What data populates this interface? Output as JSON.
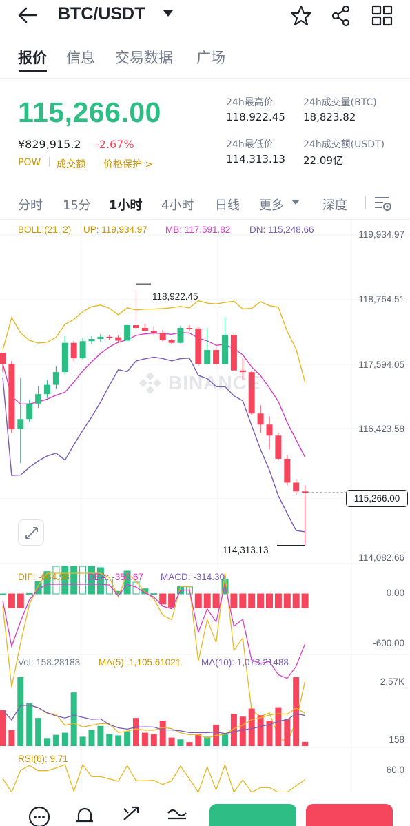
{
  "header": {
    "back_icon": "arrow-left-icon",
    "pair": "BTC/USDT",
    "icons": [
      "star-icon",
      "share-icon",
      "grid-icon"
    ]
  },
  "tabs": [
    "报价",
    "信息",
    "交易数据",
    "广场"
  ],
  "price": {
    "last": "115,266.00",
    "cny": "¥829,915.2",
    "change": "-2.67%",
    "tags": [
      "POW",
      "成交额",
      "价格保护 >"
    ],
    "high_label": "24h最高价",
    "high": "118,922.45",
    "low_label": "24h最低价",
    "low": "114,313.13",
    "vol_btc_label": "24h成交量(BTC)",
    "vol_btc": "18,823.82",
    "vol_usdt_label": "24h成交额(USDT)",
    "vol_usdt": "22.09亿"
  },
  "intervals": {
    "items": [
      "分时",
      "15分",
      "1小时",
      "4小时",
      "日线",
      "更多",
      "深度"
    ],
    "selected": "1小时"
  },
  "indicators": {
    "boll": {
      "name": "BOLL:(21, 2)",
      "up": "UP: 119,934.97",
      "mb": "MB: 117,591.82",
      "dn": "DN: 115,248.66"
    },
    "macd": {
      "dif": "DIF: -664.98",
      "dea": "DEA: -350.67",
      "macd": "MACD: -314.30"
    },
    "vol": {
      "vol": "Vol: 158.28183",
      "ma5": "MA(5): 1,105.61021",
      "ma10": "MA(10): 1,073.21488"
    },
    "rsi": {
      "rsi": "RSI(6): 9.71"
    }
  },
  "main_axis": [
    "119,934.97",
    "118,764.51",
    "117,594.05",
    "116,423.58",
    "114,082.66"
  ],
  "current_price_tag": "115,266.00",
  "max_label": "118,922.45",
  "min_label": "114,313.13",
  "watermark": "BINANCE",
  "macd_axis": [
    "0.00",
    "-600.00"
  ],
  "vol_axis": [
    "2.57K",
    "158"
  ],
  "rsi_axis": [
    "60.0"
  ],
  "colors": {
    "up": "#2ebd85",
    "down": "#f6465d",
    "boll_up": "#e8b923",
    "boll_mb": "#d63ec4",
    "boll_dn": "#7a5cb8",
    "accent": "#c99400"
  },
  "chart_data": {
    "type": "candlestick",
    "ylim": [
      114082.66,
      119934.97
    ],
    "candles": [
      {
        "o": 117800,
        "c": 117600,
        "h": 117800,
        "l": 117450
      },
      {
        "o": 117600,
        "c": 116420,
        "h": 117650,
        "l": 116350
      },
      {
        "o": 116420,
        "c": 116600,
        "h": 117350,
        "l": 115800
      },
      {
        "o": 116600,
        "c": 116880,
        "h": 116950,
        "l": 116550
      },
      {
        "o": 116880,
        "c": 117050,
        "h": 117200,
        "l": 116800
      },
      {
        "o": 117050,
        "c": 117220,
        "h": 117300,
        "l": 116980
      },
      {
        "o": 117220,
        "c": 117450,
        "h": 117550,
        "l": 117150
      },
      {
        "o": 117450,
        "c": 117980,
        "h": 118100,
        "l": 117400
      },
      {
        "o": 117980,
        "c": 117700,
        "h": 118020,
        "l": 117650
      },
      {
        "o": 117700,
        "c": 118010,
        "h": 118080,
        "l": 117680
      },
      {
        "o": 118010,
        "c": 118050,
        "h": 118100,
        "l": 117950
      },
      {
        "o": 118050,
        "c": 118090,
        "h": 118140,
        "l": 118000
      },
      {
        "o": 118090,
        "c": 118080,
        "h": 118120,
        "l": 118040
      },
      {
        "o": 118080,
        "c": 118020,
        "h": 118110,
        "l": 117980
      },
      {
        "o": 118020,
        "c": 118300,
        "h": 118320,
        "l": 118000
      },
      {
        "o": 118300,
        "c": 118250,
        "h": 118922.45,
        "l": 118220
      },
      {
        "o": 118250,
        "c": 118200,
        "h": 118330,
        "l": 118180
      },
      {
        "o": 118200,
        "c": 118160,
        "h": 118280,
        "l": 118130
      },
      {
        "o": 118160,
        "c": 118030,
        "h": 118220,
        "l": 118000
      },
      {
        "o": 118030,
        "c": 117980,
        "h": 118050,
        "l": 117950
      },
      {
        "o": 117980,
        "c": 118250,
        "h": 118290,
        "l": 117970
      },
      {
        "o": 118250,
        "c": 118240,
        "h": 118300,
        "l": 118200
      },
      {
        "o": 118240,
        "c": 117600,
        "h": 118260,
        "l": 117560
      },
      {
        "o": 117600,
        "c": 117850,
        "h": 118250,
        "l": 117580
      },
      {
        "o": 117850,
        "c": 117600,
        "h": 117900,
        "l": 117560
      },
      {
        "o": 117600,
        "c": 118120,
        "h": 118450,
        "l": 117580
      },
      {
        "o": 118120,
        "c": 117480,
        "h": 118150,
        "l": 117460
      },
      {
        "o": 117480,
        "c": 117450,
        "h": 117700,
        "l": 117300
      },
      {
        "o": 117450,
        "c": 116700,
        "h": 117480,
        "l": 116680
      },
      {
        "o": 116700,
        "c": 116500,
        "h": 116850,
        "l": 116350
      },
      {
        "o": 116500,
        "c": 116300,
        "h": 116650,
        "l": 116050
      },
      {
        "o": 116300,
        "c": 115880,
        "h": 116350,
        "l": 115850
      },
      {
        "o": 115880,
        "c": 115450,
        "h": 115950,
        "l": 115400
      },
      {
        "o": 115450,
        "c": 115290,
        "h": 115500,
        "l": 115220
      },
      {
        "o": 115290,
        "c": 115266,
        "h": 115400,
        "l": 114313.13
      }
    ],
    "volumes": [
      1350,
      600,
      2570,
      1600,
      1050,
      300,
      420,
      500,
      2000,
      350,
      600,
      750,
      450,
      400,
      550,
      1050,
      500,
      450,
      950,
      320,
      250,
      150,
      450,
      350,
      800,
      450,
      1200,
      1100,
      1400,
      1150,
      950,
      1450,
      1000,
      2570,
      158
    ],
    "volume_up": [
      false,
      false,
      true,
      true,
      true,
      true,
      true,
      true,
      true,
      true,
      true,
      true,
      true,
      true,
      true,
      false,
      false,
      false,
      false,
      false,
      true,
      false,
      false,
      true,
      false,
      true,
      false,
      false,
      false,
      false,
      false,
      false,
      false,
      false,
      false
    ]
  }
}
